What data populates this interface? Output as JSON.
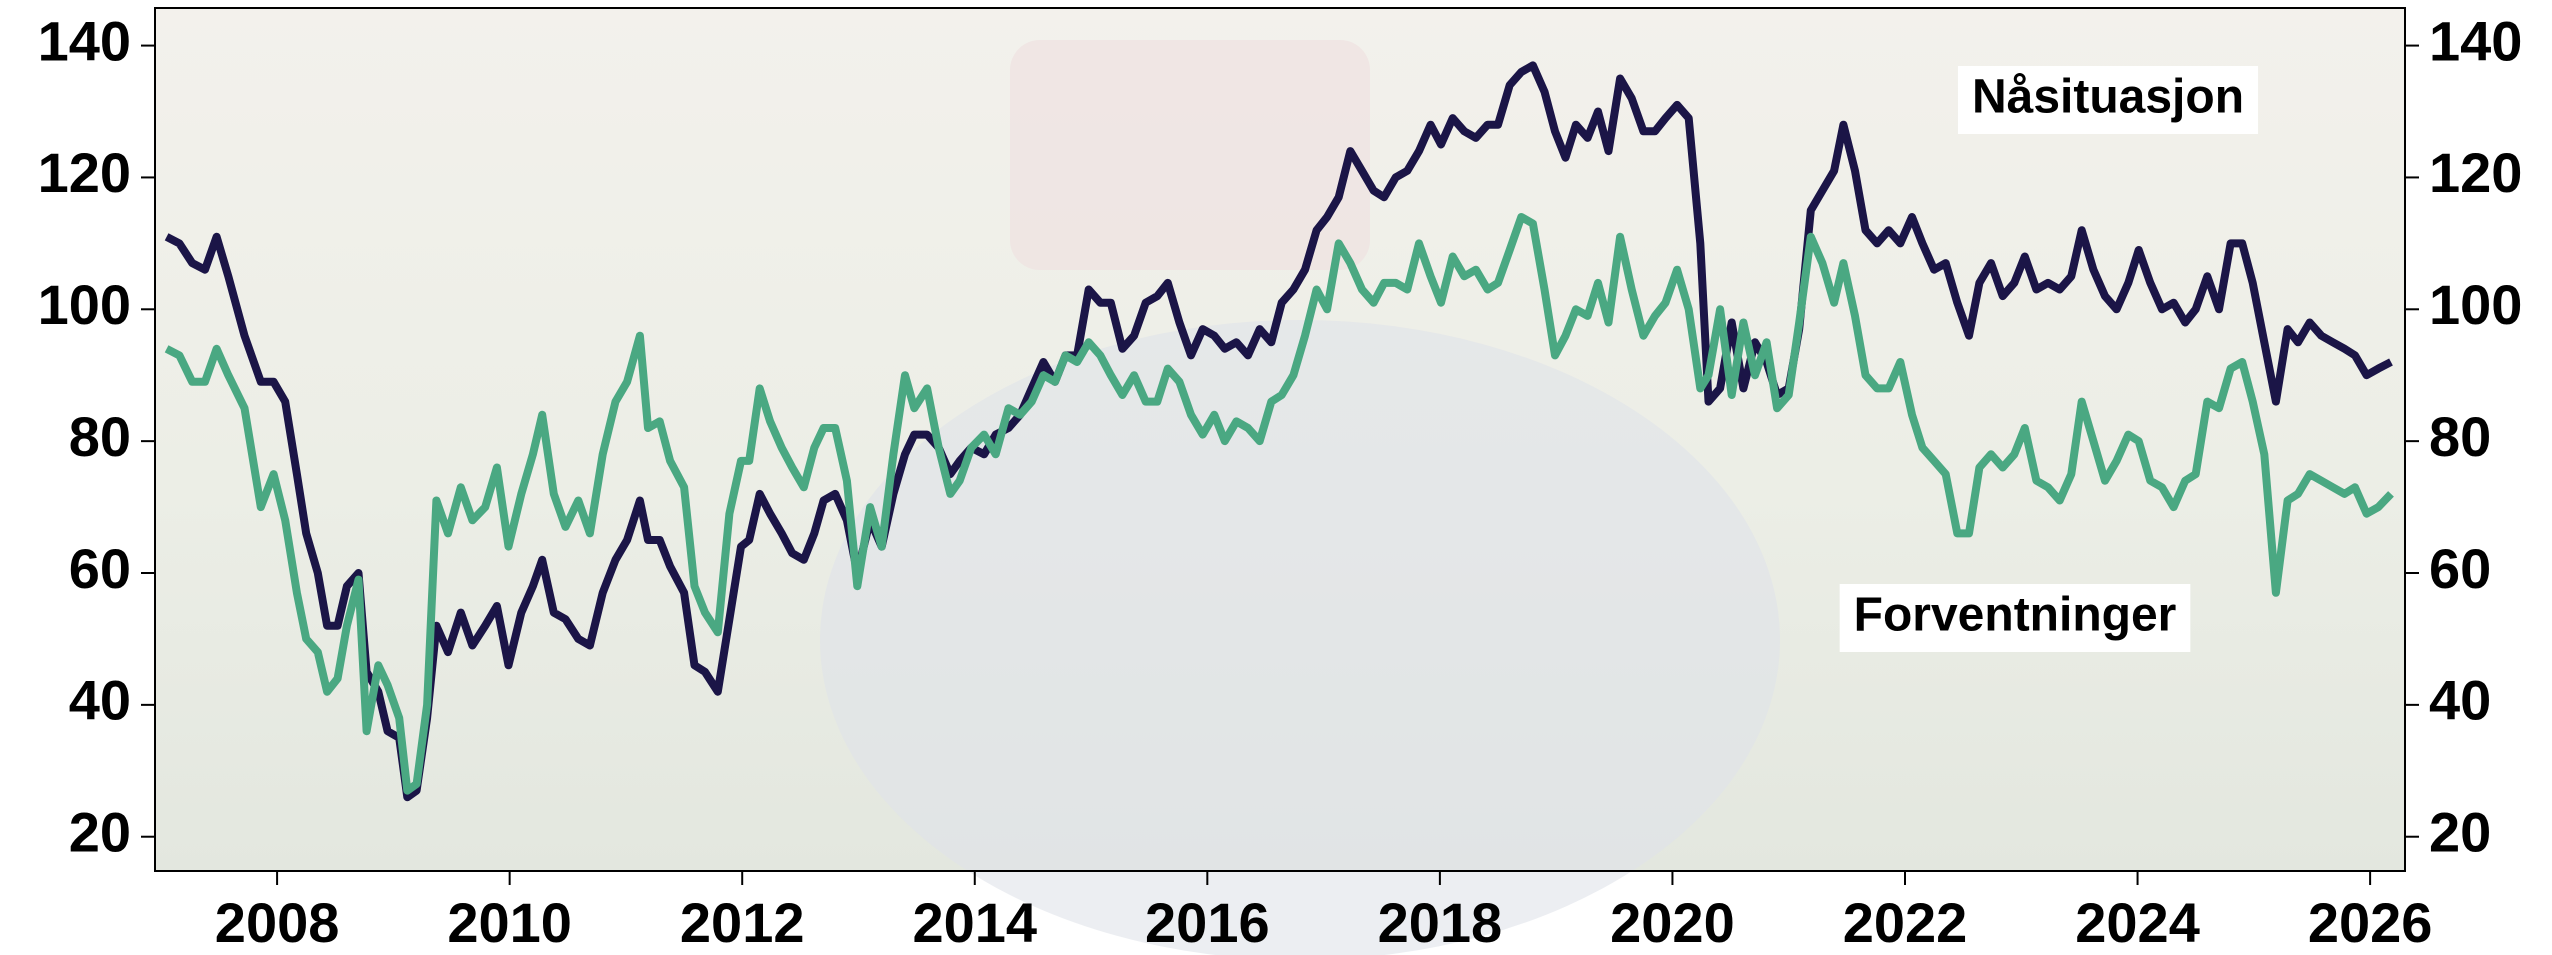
{
  "chart_data": {
    "type": "line",
    "x": [
      2007.05,
      2007.16,
      2007.27,
      2007.38,
      2007.48,
      2007.58,
      2007.72,
      2007.86,
      2007.97,
      2008.07,
      2008.17,
      2008.25,
      2008.35,
      2008.43,
      2008.52,
      2008.6,
      2008.7,
      2008.77,
      2008.87,
      2008.95,
      2009.05,
      2009.12,
      2009.2,
      2009.29,
      2009.37,
      2009.47,
      2009.58,
      2009.68,
      2009.79,
      2009.89,
      2009.99,
      2010.1,
      2010.2,
      2010.28,
      2010.38,
      2010.48,
      2010.59,
      2010.69,
      2010.8,
      2010.91,
      2011.01,
      2011.12,
      2011.19,
      2011.29,
      2011.38,
      2011.5,
      2011.59,
      2011.68,
      2011.79,
      2011.89,
      2011.99,
      2012.06,
      2012.15,
      2012.24,
      2012.34,
      2012.43,
      2012.53,
      2012.62,
      2012.7,
      2012.8,
      2012.9,
      2012.99,
      2013.1,
      2013.2,
      2013.3,
      2013.4,
      2013.48,
      2013.59,
      2013.69,
      2013.79,
      2013.87,
      2013.97,
      2014.08,
      2014.18,
      2014.29,
      2014.39,
      2014.49,
      2014.59,
      2014.69,
      2014.78,
      2014.88,
      2014.98,
      2015.08,
      2015.17,
      2015.27,
      2015.37,
      2015.47,
      2015.57,
      2015.66,
      2015.76,
      2015.86,
      2015.96,
      2016.06,
      2016.15,
      2016.25,
      2016.35,
      2016.45,
      2016.55,
      2016.64,
      2016.74,
      2016.84,
      2016.94,
      2017.03,
      2017.13,
      2017.23,
      2017.33,
      2017.43,
      2017.52,
      2017.62,
      2017.72,
      2017.82,
      2017.92,
      2018.01,
      2018.11,
      2018.21,
      2018.31,
      2018.41,
      2018.5,
      2018.6,
      2018.7,
      2018.8,
      2018.9,
      2018.99,
      2019.08,
      2019.17,
      2019.27,
      2019.36,
      2019.45,
      2019.55,
      2019.65,
      2019.75,
      2019.85,
      2019.94,
      2020.04,
      2020.14,
      2020.24,
      2020.31,
      2020.41,
      2020.51,
      2020.61,
      2020.71,
      2020.81,
      2020.9,
      2021.0,
      2021.09,
      2021.19,
      2021.29,
      2021.39,
      2021.47,
      2021.57,
      2021.66,
      2021.76,
      2021.86,
      2021.96,
      2022.06,
      2022.15,
      2022.25,
      2022.35,
      2022.45,
      2022.55,
      2022.64,
      2022.74,
      2022.84,
      2022.94,
      2023.03,
      2023.13,
      2023.23,
      2023.33,
      2023.43,
      2023.52,
      2023.62,
      2023.72,
      2023.82,
      2023.92,
      2024.01,
      2024.11,
      2024.21,
      2024.31,
      2024.41,
      2024.5,
      2024.6,
      2024.7,
      2024.8,
      2024.9,
      2024.99,
      2025.09,
      2025.19,
      2025.29,
      2025.38,
      2025.48,
      2025.58,
      2025.68,
      2025.78,
      2025.87,
      2025.97,
      2026.07,
      2026.18
    ],
    "series": [
      {
        "name": "Nåsituasjon",
        "color": "#1b1547",
        "values": [
          111,
          110,
          107,
          106,
          111,
          105,
          96,
          89,
          89,
          86,
          75,
          66,
          60,
          52,
          52,
          58,
          60,
          45,
          42,
          36,
          35,
          26,
          27,
          38,
          52,
          48,
          54,
          49,
          52,
          55,
          46,
          54,
          58,
          62,
          54,
          53,
          50,
          49,
          57,
          62,
          65,
          71,
          65,
          65,
          61,
          57,
          46,
          45,
          42,
          53,
          64,
          65,
          72,
          69,
          66,
          63,
          62,
          66,
          71,
          72,
          68,
          60,
          68,
          64,
          72,
          78,
          81,
          81,
          79,
          75,
          77,
          79,
          78,
          81,
          82,
          84,
          88,
          92,
          89,
          93,
          93,
          103,
          101,
          101,
          94,
          96,
          101,
          102,
          104,
          98,
          93,
          97,
          96,
          94,
          95,
          93,
          97,
          95,
          101,
          103,
          106,
          112,
          114,
          117,
          124,
          121,
          118,
          117,
          120,
          121,
          124,
          128,
          125,
          129,
          127,
          126,
          128,
          128,
          134,
          136,
          137,
          133,
          127,
          123,
          128,
          126,
          130,
          124,
          135,
          132,
          127,
          127,
          129,
          131,
          129,
          110,
          86,
          88,
          98,
          88,
          95,
          92,
          87,
          88,
          97,
          115,
          118,
          121,
          128,
          121,
          112,
          110,
          112,
          110,
          114,
          110,
          106,
          107,
          101,
          96,
          104,
          107,
          102,
          104,
          108,
          103,
          104,
          103,
          105,
          112,
          106,
          102,
          100,
          104,
          109,
          104,
          100,
          101,
          98,
          100,
          105,
          100,
          110,
          110,
          104,
          95,
          86,
          97,
          95,
          98,
          96,
          95,
          94,
          93,
          90,
          91,
          92
        ]
      },
      {
        "name": "Forventninger",
        "color": "#4aa882",
        "values": [
          94,
          93,
          89,
          89,
          94,
          90,
          85,
          70,
          75,
          68,
          57,
          50,
          48,
          42,
          44,
          52,
          59,
          36,
          46,
          43,
          38,
          27,
          28,
          40,
          71,
          66,
          73,
          68,
          70,
          76,
          64,
          72,
          78,
          84,
          72,
          67,
          71,
          66,
          78,
          86,
          89,
          96,
          82,
          83,
          77,
          73,
          58,
          54,
          51,
          69,
          77,
          77,
          88,
          83,
          79,
          76,
          73,
          79,
          82,
          82,
          74,
          58,
          70,
          64,
          78,
          90,
          85,
          88,
          79,
          72,
          74,
          79,
          81,
          78,
          85,
          84,
          86,
          90,
          89,
          93,
          92,
          95,
          93,
          90,
          87,
          90,
          86,
          86,
          91,
          89,
          84,
          81,
          84,
          80,
          83,
          82,
          80,
          86,
          87,
          90,
          96,
          103,
          100,
          110,
          107,
          103,
          101,
          104,
          104,
          103,
          110,
          105,
          101,
          108,
          105,
          106,
          103,
          104,
          109,
          114,
          113,
          103,
          93,
          96,
          100,
          99,
          104,
          98,
          111,
          103,
          96,
          99,
          101,
          106,
          100,
          88,
          90,
          100,
          87,
          98,
          90,
          95,
          85,
          87,
          98,
          111,
          107,
          101,
          107,
          99,
          90,
          88,
          88,
          92,
          84,
          79,
          77,
          75,
          66,
          66,
          76,
          78,
          76,
          78,
          82,
          74,
          73,
          71,
          75,
          86,
          80,
          74,
          77,
          81,
          80,
          74,
          73,
          70,
          74,
          75,
          86,
          85,
          91,
          92,
          86,
          78,
          57,
          71,
          72,
          75,
          74,
          73,
          72,
          73,
          69,
          70,
          72
        ]
      }
    ],
    "xlim": [
      2006.95,
      2026.3
    ],
    "xticks": [
      2008,
      2010,
      2012,
      2014,
      2016,
      2018,
      2020,
      2022,
      2024,
      2026
    ],
    "ylim": [
      14.8,
      145.7
    ],
    "yticks": [
      20,
      40,
      60,
      80,
      100,
      120,
      140
    ],
    "y2lim": [
      14.8,
      145.7
    ],
    "y2ticks": [
      20,
      40,
      60,
      80,
      100,
      120,
      140
    ]
  }
}
